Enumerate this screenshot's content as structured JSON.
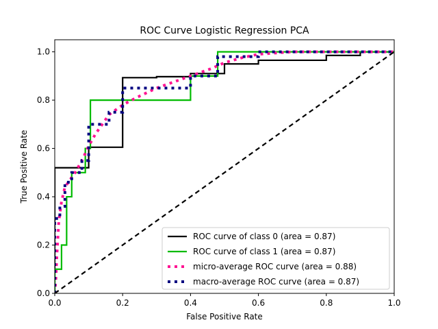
{
  "chart_data": {
    "type": "line",
    "title": "ROC Curve Logistic Regression PCA",
    "xlabel": "False Positive Rate",
    "ylabel": "True Positive Rate",
    "xlim": [
      0.0,
      1.0
    ],
    "ylim": [
      0.0,
      1.05
    ],
    "xticks": [
      "0.0",
      "0.2",
      "0.4",
      "0.6",
      "0.8",
      "1.0"
    ],
    "yticks": [
      "0.0",
      "0.2",
      "0.4",
      "0.6",
      "0.8",
      "1.0"
    ],
    "grid": false,
    "legend_position": "lower-right",
    "series": [
      {
        "name": "ROC curve of class 0 (area = 0.87)",
        "color": "#000000",
        "style": "solid",
        "points": [
          [
            0,
            0
          ],
          [
            0,
            0.52
          ],
          [
            0.05,
            0.52
          ],
          [
            0.05,
            0.52
          ],
          [
            0.1,
            0.52
          ],
          [
            0.1,
            0.605
          ],
          [
            0.2,
            0.605
          ],
          [
            0.2,
            0.893
          ],
          [
            0.3,
            0.893
          ],
          [
            0.3,
            0.897
          ],
          [
            0.4,
            0.897
          ],
          [
            0.4,
            0.91
          ],
          [
            0.5,
            0.91
          ],
          [
            0.5,
            0.95
          ],
          [
            0.6,
            0.95
          ],
          [
            0.6,
            0.965
          ],
          [
            0.8,
            0.965
          ],
          [
            0.8,
            0.985
          ],
          [
            0.9,
            0.985
          ],
          [
            0.9,
            1.0
          ],
          [
            1.0,
            1.0
          ]
        ]
      },
      {
        "name": "ROC curve of class 1 (area = 0.87)",
        "color": "#00bb00",
        "style": "solid",
        "points": [
          [
            0,
            0
          ],
          [
            0,
            0.1
          ],
          [
            0.02,
            0.1
          ],
          [
            0.02,
            0.2
          ],
          [
            0.035,
            0.2
          ],
          [
            0.035,
            0.4
          ],
          [
            0.05,
            0.4
          ],
          [
            0.05,
            0.5
          ],
          [
            0.09,
            0.5
          ],
          [
            0.09,
            0.6
          ],
          [
            0.105,
            0.6
          ],
          [
            0.105,
            0.8
          ],
          [
            0.4,
            0.8
          ],
          [
            0.4,
            0.9
          ],
          [
            0.48,
            0.9
          ],
          [
            0.48,
            1.0
          ],
          [
            1.0,
            1.0
          ]
        ]
      },
      {
        "name": "micro-average ROC curve (area = 0.88)",
        "color": "#ff1493",
        "style": "dotted",
        "points": [
          [
            0,
            0
          ],
          [
            0.003,
            0.05
          ],
          [
            0.006,
            0.15
          ],
          [
            0.012,
            0.3
          ],
          [
            0.02,
            0.38
          ],
          [
            0.03,
            0.44
          ],
          [
            0.045,
            0.47
          ],
          [
            0.06,
            0.5
          ],
          [
            0.08,
            0.55
          ],
          [
            0.1,
            0.61
          ],
          [
            0.12,
            0.66
          ],
          [
            0.14,
            0.7
          ],
          [
            0.16,
            0.74
          ],
          [
            0.18,
            0.76
          ],
          [
            0.2,
            0.78
          ],
          [
            0.24,
            0.81
          ],
          [
            0.3,
            0.85
          ],
          [
            0.34,
            0.87
          ],
          [
            0.38,
            0.89
          ],
          [
            0.42,
            0.91
          ],
          [
            0.46,
            0.93
          ],
          [
            0.5,
            0.955
          ],
          [
            0.55,
            0.975
          ],
          [
            0.6,
            0.99
          ],
          [
            0.7,
            1.0
          ],
          [
            1.0,
            1.0
          ]
        ]
      },
      {
        "name": "macro-average ROC curve (area = 0.87)",
        "color": "#000080",
        "style": "dotted",
        "points": [
          [
            0,
            0
          ],
          [
            0,
            0.31
          ],
          [
            0.005,
            0.31
          ],
          [
            0.015,
            0.31
          ],
          [
            0.015,
            0.36
          ],
          [
            0.025,
            0.36
          ],
          [
            0.03,
            0.36
          ],
          [
            0.03,
            0.46
          ],
          [
            0.045,
            0.46
          ],
          [
            0.05,
            0.46
          ],
          [
            0.05,
            0.5
          ],
          [
            0.07,
            0.5
          ],
          [
            0.08,
            0.5
          ],
          [
            0.08,
            0.55
          ],
          [
            0.09,
            0.55
          ],
          [
            0.1,
            0.55
          ],
          [
            0.1,
            0.7
          ],
          [
            0.12,
            0.7
          ],
          [
            0.16,
            0.7
          ],
          [
            0.16,
            0.75
          ],
          [
            0.2,
            0.75
          ],
          [
            0.2,
            0.85
          ],
          [
            0.24,
            0.85
          ],
          [
            0.3,
            0.85
          ],
          [
            0.3,
            0.85
          ],
          [
            0.4,
            0.85
          ],
          [
            0.4,
            0.9
          ],
          [
            0.48,
            0.9
          ],
          [
            0.48,
            0.98
          ],
          [
            0.6,
            0.98
          ],
          [
            0.6,
            1.0
          ],
          [
            1.0,
            1.0
          ]
        ]
      },
      {
        "name": "",
        "color": "#000000",
        "style": "dashed",
        "points": [
          [
            0,
            0
          ],
          [
            1,
            1
          ]
        ]
      }
    ]
  }
}
